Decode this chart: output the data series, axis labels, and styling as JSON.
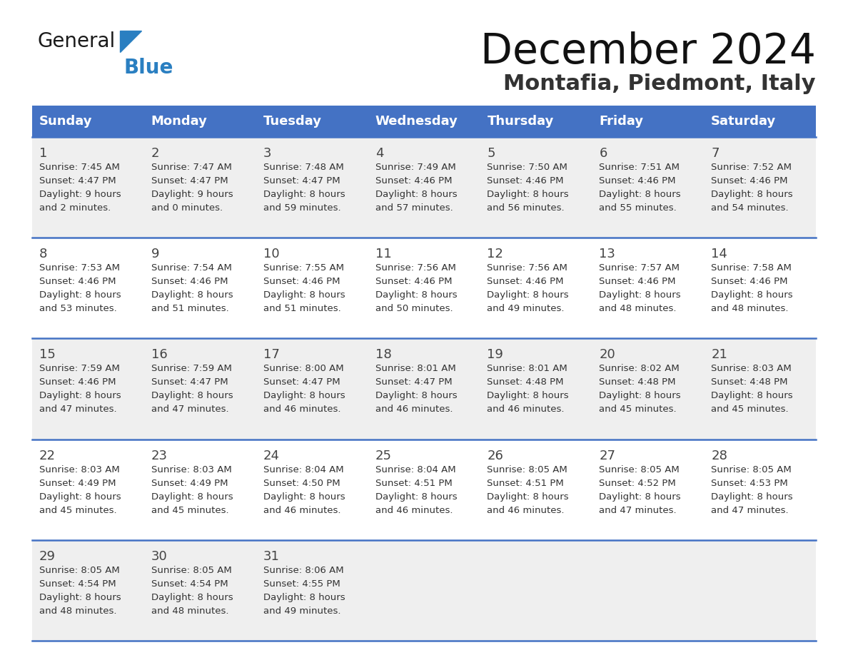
{
  "title": "December 2024",
  "subtitle": "Montafia, Piedmont, Italy",
  "days_of_week": [
    "Sunday",
    "Monday",
    "Tuesday",
    "Wednesday",
    "Thursday",
    "Friday",
    "Saturday"
  ],
  "header_bg": "#4472C4",
  "header_text": "#FFFFFF",
  "row_bg_light": "#EFEFEF",
  "row_bg_white": "#FFFFFF",
  "separator_color": "#4472C4",
  "day_num_color": "#444444",
  "cell_text_color": "#333333",
  "title_color": "#111111",
  "subtitle_color": "#333333",
  "logo_general_color": "#1a1a1a",
  "logo_blue_color": "#2a7fc1",
  "calendar_data": [
    {
      "day": 1,
      "col": 0,
      "row": 0,
      "sunrise": "7:45 AM",
      "sunset": "4:47 PM",
      "daylight_line1": "Daylight: 9 hours",
      "daylight_line2": "and 2 minutes."
    },
    {
      "day": 2,
      "col": 1,
      "row": 0,
      "sunrise": "7:47 AM",
      "sunset": "4:47 PM",
      "daylight_line1": "Daylight: 9 hours",
      "daylight_line2": "and 0 minutes."
    },
    {
      "day": 3,
      "col": 2,
      "row": 0,
      "sunrise": "7:48 AM",
      "sunset": "4:47 PM",
      "daylight_line1": "Daylight: 8 hours",
      "daylight_line2": "and 59 minutes."
    },
    {
      "day": 4,
      "col": 3,
      "row": 0,
      "sunrise": "7:49 AM",
      "sunset": "4:46 PM",
      "daylight_line1": "Daylight: 8 hours",
      "daylight_line2": "and 57 minutes."
    },
    {
      "day": 5,
      "col": 4,
      "row": 0,
      "sunrise": "7:50 AM",
      "sunset": "4:46 PM",
      "daylight_line1": "Daylight: 8 hours",
      "daylight_line2": "and 56 minutes."
    },
    {
      "day": 6,
      "col": 5,
      "row": 0,
      "sunrise": "7:51 AM",
      "sunset": "4:46 PM",
      "daylight_line1": "Daylight: 8 hours",
      "daylight_line2": "and 55 minutes."
    },
    {
      "day": 7,
      "col": 6,
      "row": 0,
      "sunrise": "7:52 AM",
      "sunset": "4:46 PM",
      "daylight_line1": "Daylight: 8 hours",
      "daylight_line2": "and 54 minutes."
    },
    {
      "day": 8,
      "col": 0,
      "row": 1,
      "sunrise": "7:53 AM",
      "sunset": "4:46 PM",
      "daylight_line1": "Daylight: 8 hours",
      "daylight_line2": "and 53 minutes."
    },
    {
      "day": 9,
      "col": 1,
      "row": 1,
      "sunrise": "7:54 AM",
      "sunset": "4:46 PM",
      "daylight_line1": "Daylight: 8 hours",
      "daylight_line2": "and 51 minutes."
    },
    {
      "day": 10,
      "col": 2,
      "row": 1,
      "sunrise": "7:55 AM",
      "sunset": "4:46 PM",
      "daylight_line1": "Daylight: 8 hours",
      "daylight_line2": "and 51 minutes."
    },
    {
      "day": 11,
      "col": 3,
      "row": 1,
      "sunrise": "7:56 AM",
      "sunset": "4:46 PM",
      "daylight_line1": "Daylight: 8 hours",
      "daylight_line2": "and 50 minutes."
    },
    {
      "day": 12,
      "col": 4,
      "row": 1,
      "sunrise": "7:56 AM",
      "sunset": "4:46 PM",
      "daylight_line1": "Daylight: 8 hours",
      "daylight_line2": "and 49 minutes."
    },
    {
      "day": 13,
      "col": 5,
      "row": 1,
      "sunrise": "7:57 AM",
      "sunset": "4:46 PM",
      "daylight_line1": "Daylight: 8 hours",
      "daylight_line2": "and 48 minutes."
    },
    {
      "day": 14,
      "col": 6,
      "row": 1,
      "sunrise": "7:58 AM",
      "sunset": "4:46 PM",
      "daylight_line1": "Daylight: 8 hours",
      "daylight_line2": "and 48 minutes."
    },
    {
      "day": 15,
      "col": 0,
      "row": 2,
      "sunrise": "7:59 AM",
      "sunset": "4:46 PM",
      "daylight_line1": "Daylight: 8 hours",
      "daylight_line2": "and 47 minutes."
    },
    {
      "day": 16,
      "col": 1,
      "row": 2,
      "sunrise": "7:59 AM",
      "sunset": "4:47 PM",
      "daylight_line1": "Daylight: 8 hours",
      "daylight_line2": "and 47 minutes."
    },
    {
      "day": 17,
      "col": 2,
      "row": 2,
      "sunrise": "8:00 AM",
      "sunset": "4:47 PM",
      "daylight_line1": "Daylight: 8 hours",
      "daylight_line2": "and 46 minutes."
    },
    {
      "day": 18,
      "col": 3,
      "row": 2,
      "sunrise": "8:01 AM",
      "sunset": "4:47 PM",
      "daylight_line1": "Daylight: 8 hours",
      "daylight_line2": "and 46 minutes."
    },
    {
      "day": 19,
      "col": 4,
      "row": 2,
      "sunrise": "8:01 AM",
      "sunset": "4:48 PM",
      "daylight_line1": "Daylight: 8 hours",
      "daylight_line2": "and 46 minutes."
    },
    {
      "day": 20,
      "col": 5,
      "row": 2,
      "sunrise": "8:02 AM",
      "sunset": "4:48 PM",
      "daylight_line1": "Daylight: 8 hours",
      "daylight_line2": "and 45 minutes."
    },
    {
      "day": 21,
      "col": 6,
      "row": 2,
      "sunrise": "8:03 AM",
      "sunset": "4:48 PM",
      "daylight_line1": "Daylight: 8 hours",
      "daylight_line2": "and 45 minutes."
    },
    {
      "day": 22,
      "col": 0,
      "row": 3,
      "sunrise": "8:03 AM",
      "sunset": "4:49 PM",
      "daylight_line1": "Daylight: 8 hours",
      "daylight_line2": "and 45 minutes."
    },
    {
      "day": 23,
      "col": 1,
      "row": 3,
      "sunrise": "8:03 AM",
      "sunset": "4:49 PM",
      "daylight_line1": "Daylight: 8 hours",
      "daylight_line2": "and 45 minutes."
    },
    {
      "day": 24,
      "col": 2,
      "row": 3,
      "sunrise": "8:04 AM",
      "sunset": "4:50 PM",
      "daylight_line1": "Daylight: 8 hours",
      "daylight_line2": "and 46 minutes."
    },
    {
      "day": 25,
      "col": 3,
      "row": 3,
      "sunrise": "8:04 AM",
      "sunset": "4:51 PM",
      "daylight_line1": "Daylight: 8 hours",
      "daylight_line2": "and 46 minutes."
    },
    {
      "day": 26,
      "col": 4,
      "row": 3,
      "sunrise": "8:05 AM",
      "sunset": "4:51 PM",
      "daylight_line1": "Daylight: 8 hours",
      "daylight_line2": "and 46 minutes."
    },
    {
      "day": 27,
      "col": 5,
      "row": 3,
      "sunrise": "8:05 AM",
      "sunset": "4:52 PM",
      "daylight_line1": "Daylight: 8 hours",
      "daylight_line2": "and 47 minutes."
    },
    {
      "day": 28,
      "col": 6,
      "row": 3,
      "sunrise": "8:05 AM",
      "sunset": "4:53 PM",
      "daylight_line1": "Daylight: 8 hours",
      "daylight_line2": "and 47 minutes."
    },
    {
      "day": 29,
      "col": 0,
      "row": 4,
      "sunrise": "8:05 AM",
      "sunset": "4:54 PM",
      "daylight_line1": "Daylight: 8 hours",
      "daylight_line2": "and 48 minutes."
    },
    {
      "day": 30,
      "col": 1,
      "row": 4,
      "sunrise": "8:05 AM",
      "sunset": "4:54 PM",
      "daylight_line1": "Daylight: 8 hours",
      "daylight_line2": "and 48 minutes."
    },
    {
      "day": 31,
      "col": 2,
      "row": 4,
      "sunrise": "8:06 AM",
      "sunset": "4:55 PM",
      "daylight_line1": "Daylight: 8 hours",
      "daylight_line2": "and 49 minutes."
    }
  ]
}
